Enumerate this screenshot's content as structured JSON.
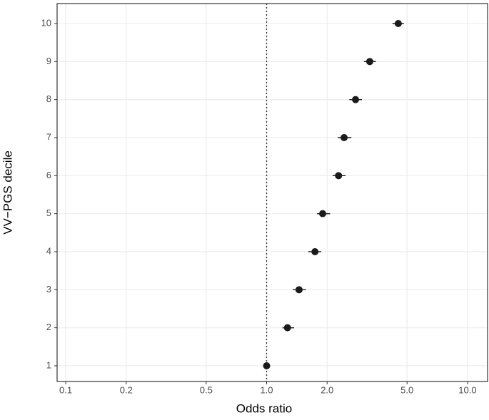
{
  "chart_data": {
    "type": "forest",
    "x_label": "Odds ratio",
    "y_label": "VV−PGS decile",
    "y": [
      1,
      2,
      3,
      4,
      5,
      6,
      7,
      8,
      9,
      10
    ],
    "values": [
      1.0,
      1.27,
      1.45,
      1.74,
      1.9,
      2.28,
      2.43,
      2.77,
      3.26,
      4.52
    ],
    "lower": [
      1.0,
      1.2,
      1.35,
      1.61,
      1.78,
      2.13,
      2.26,
      2.58,
      3.05,
      4.23
    ],
    "upper": [
      1.0,
      1.37,
      1.57,
      1.87,
      2.07,
      2.47,
      2.64,
      2.98,
      3.5,
      4.82
    ],
    "color": "#1a1a1a",
    "x_log": true,
    "xlim": [
      0.0906,
      12.58
    ],
    "xticks": [
      0.1,
      0.2,
      0.5,
      {
        "value": 1,
        "label": "1.0"
      },
      {
        "value": 2,
        "label": "2.0"
      },
      {
        "value": 5,
        "label": "5.0"
      },
      {
        "value": 10,
        "label": "10.0"
      }
    ],
    "ylim": [
      0.587,
      10.525
    ],
    "yticks": [
      1,
      2,
      3,
      4,
      5,
      6,
      7,
      8,
      9,
      10
    ],
    "vline": 1,
    "grid": true
  }
}
